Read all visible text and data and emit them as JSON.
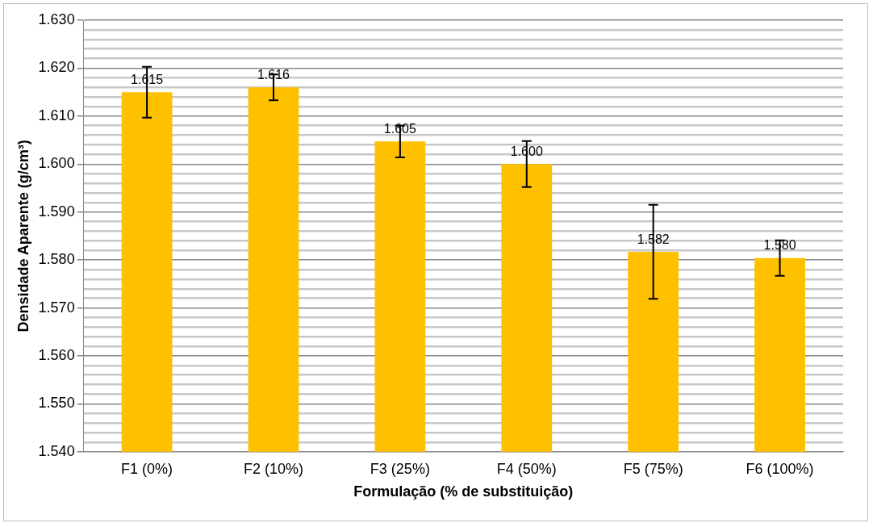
{
  "chart_data": {
    "type": "bar",
    "xlabel": "Formulação (% de substituição)",
    "ylabel": "Densidade Aparente (g/cm³)",
    "categories": [
      "F1 (0%)",
      "F2 (10%)",
      "F3 (25%)",
      "F4 (50%)",
      "F5 (75%)",
      "F6 (100%)"
    ],
    "values": [
      1.615,
      1.616,
      1.6047,
      1.6,
      1.5817,
      1.5804
    ],
    "value_labels": [
      "1.615",
      "1.616",
      "1.605",
      "1.600",
      "1.582",
      "1.580"
    ],
    "errors": [
      0.0053,
      0.0027,
      0.0033,
      0.0048,
      0.0098,
      0.0037
    ],
    "color": "#ffc000",
    "ylim": [
      1.54,
      1.63
    ],
    "yticks": [
      {
        "value": 1.54,
        "label": "1.540"
      },
      {
        "value": 1.542,
        "label": null
      },
      {
        "value": 1.544,
        "label": null
      },
      {
        "value": 1.546,
        "label": null
      },
      {
        "value": 1.548,
        "label": null
      },
      {
        "value": 1.55,
        "label": "1.550"
      },
      {
        "value": 1.552,
        "label": null
      },
      {
        "value": 1.554,
        "label": null
      },
      {
        "value": 1.556,
        "label": null
      },
      {
        "value": 1.558,
        "label": null
      },
      {
        "value": 1.56,
        "label": "1.560"
      },
      {
        "value": 1.562,
        "label": null
      },
      {
        "value": 1.564,
        "label": null
      },
      {
        "value": 1.566,
        "label": null
      },
      {
        "value": 1.568,
        "label": null
      },
      {
        "value": 1.57,
        "label": "1.570"
      },
      {
        "value": 1.572,
        "label": null
      },
      {
        "value": 1.574,
        "label": null
      },
      {
        "value": 1.576,
        "label": null
      },
      {
        "value": 1.578,
        "label": null
      },
      {
        "value": 1.58,
        "label": "1.580"
      },
      {
        "value": 1.582,
        "label": null
      },
      {
        "value": 1.584,
        "label": null
      },
      {
        "value": 1.586,
        "label": null
      },
      {
        "value": 1.588,
        "label": null
      },
      {
        "value": 1.59,
        "label": "1.590"
      },
      {
        "value": 1.592,
        "label": null
      },
      {
        "value": 1.594,
        "label": null
      },
      {
        "value": 1.596,
        "label": null
      },
      {
        "value": 1.598,
        "label": null
      },
      {
        "value": 1.6,
        "label": "1.600"
      },
      {
        "value": 1.602,
        "label": null
      },
      {
        "value": 1.604,
        "label": null
      },
      {
        "value": 1.606,
        "label": null
      },
      {
        "value": 1.608,
        "label": null
      },
      {
        "value": 1.61,
        "label": "1.610"
      },
      {
        "value": 1.612,
        "label": null
      },
      {
        "value": 1.614,
        "label": null
      },
      {
        "value": 1.616,
        "label": null
      },
      {
        "value": 1.618,
        "label": null
      },
      {
        "value": 1.62,
        "label": "1.620"
      },
      {
        "value": 1.622,
        "label": null
      },
      {
        "value": 1.624,
        "label": null
      },
      {
        "value": 1.626,
        "label": null
      },
      {
        "value": 1.628,
        "label": null
      },
      {
        "value": 1.63,
        "label": "1.630"
      }
    ],
    "grid": "y",
    "legend": false
  }
}
